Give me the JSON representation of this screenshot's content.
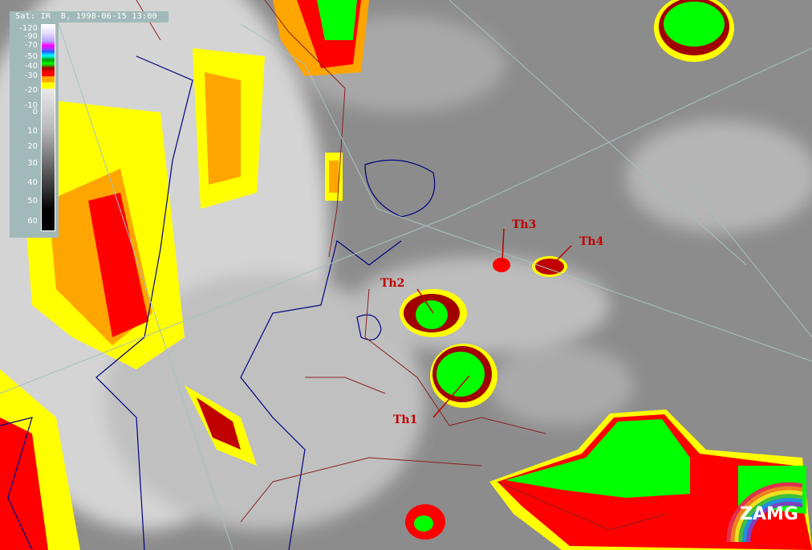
{
  "header": {
    "title": "Sat: IR  B, 1998-06-15 13:00"
  },
  "legend": {
    "ticks": [
      "-120",
      "-90",
      "-70",
      "-50",
      "-40",
      "-30",
      "-20",
      "-10",
      "0",
      "10",
      "20",
      "30",
      "40",
      "50",
      "60"
    ]
  },
  "annotations": [
    "Th1",
    "Th2",
    "Th3",
    "Th4"
  ],
  "logo": {
    "text": "ZAMG"
  },
  "colors": {
    "cold_yellow": "#ffff00",
    "orange": "#ffa500",
    "red": "#ff0000",
    "dark_red": "#a00000",
    "green": "#00ff00",
    "coastline": "#000080",
    "border": "#8b2020"
  }
}
